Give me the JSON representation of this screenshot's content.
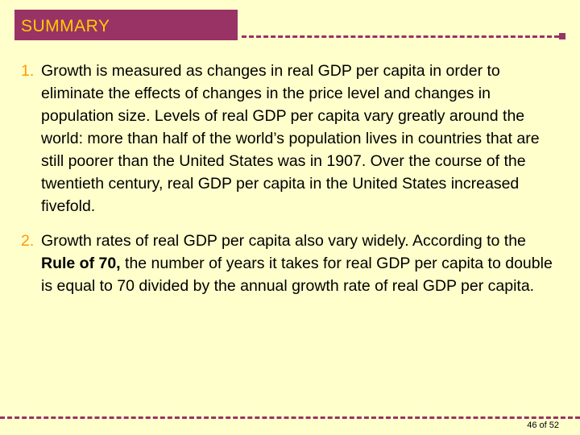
{
  "slide": {
    "title": "SUMMARY",
    "page_number": "46",
    "page_of": "of 52"
  },
  "items": [
    {
      "number": "1.",
      "text": "Growth is measured as changes in real GDP per capita in order to eliminate the effects of changes in the price level and changes in population size. Levels of real GDP per capita vary greatly around the world: more than half of the world’s population lives in countries that are still poorer than the United States was in 1907. Over the course of the twentieth century, real GDP per capita in the United States increased fivefold."
    },
    {
      "number": "2.",
      "text_before": "Growth rates of real GDP per capita also vary widely. According to the ",
      "bold_text": "Rule of 70,",
      "text_after": " the number of years it takes for real GDP per capita to double is equal to 70 divided by the annual growth rate of real GDP per capita."
    }
  ],
  "colors": {
    "background": "#ffffcc",
    "title_bar": "#993366",
    "title_text": "#ffcc00",
    "number_text": "#ff9900",
    "dash_line": "#993366"
  }
}
